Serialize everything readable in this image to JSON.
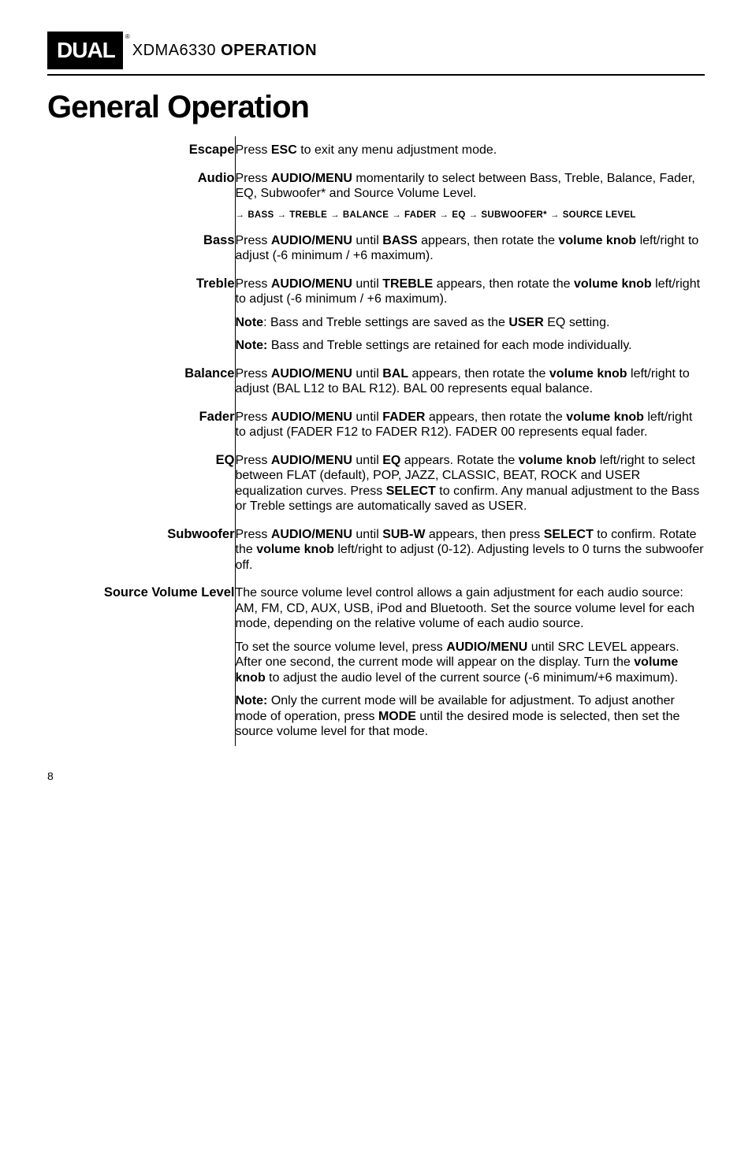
{
  "header": {
    "logo_text": "DUAL",
    "logo_reg": "®",
    "model": "XDMA6330",
    "operation_word": "OPERATION"
  },
  "main_heading": "General Operation",
  "rows": [
    {
      "label": "Escape",
      "paragraphs": [
        "Press <b>ESC</b> to exit any menu adjustment mode."
      ]
    },
    {
      "label": "Audio",
      "paragraphs": [
        "Press <b>AUDIO/MENU</b> momentarily to select between Bass, Treble, Balance, Fader, EQ, Subwoofer* and Source Volume Level."
      ],
      "flow": [
        "BASS",
        "TREBLE",
        "BALANCE",
        "FADER",
        "EQ",
        "SUBWOOFER*",
        "SOURCE LEVEL"
      ]
    },
    {
      "label": "Bass",
      "paragraphs": [
        "Press <b>AUDIO/MENU</b> until <b>BASS</b> appears, then rotate the <b>volume knob</b> left/right to adjust (-6 minimum / +6 maximum)."
      ]
    },
    {
      "label": "Treble",
      "paragraphs": [
        "Press <b>AUDIO/MENU</b> until <b>TREBLE</b> appears, then rotate the <b>volume knob</b> left/right to adjust (-6 minimum / +6 maximum).",
        "<b>Note</b>: Bass and Treble settings are saved as the <b>USER</b> EQ setting.",
        "<b>Note:</b> Bass and Treble settings are retained for each mode individually."
      ]
    },
    {
      "label": "Balance",
      "paragraphs": [
        "Press <b>AUDIO/MENU</b> until <b>BAL</b> appears, then rotate the <b>volume knob</b> left/right to adjust (BAL L12 to BAL R12). BAL 00 represents equal balance."
      ]
    },
    {
      "label": "Fader",
      "paragraphs": [
        "Press <b>AUDIO/MENU</b> until <b>FADER</b> appears, then rotate the <b>volume knob</b> left/right to adjust (FADER F12 to FADER R12). FADER 00 represents equal fader."
      ]
    },
    {
      "label": "EQ",
      "paragraphs": [
        "Press <b>AUDIO/MENU</b> until <b>EQ</b> appears. Rotate the <b>volume knob</b> left/right to select between FLAT (default), POP, JAZZ, CLASSIC, BEAT, ROCK and USER equalization curves. Press <b>SELECT</b> to confirm. Any manual adjustment to the Bass or Treble settings are automatically saved as USER."
      ]
    },
    {
      "label": "Subwoofer",
      "paragraphs": [
        "Press <b>AUDIO/MENU</b> until <b>SUB-W</b> appears, then press <b>SELECT</b> to confirm. Rotate the <b>volume knob</b> left/right to adjust (0-12).  Adjusting levels to 0 turns the subwoofer off."
      ]
    },
    {
      "label": "Source Volume Level",
      "paragraphs": [
        "The source volume level control allows a gain adjustment for each audio source: AM, FM, CD, AUX, USB, iPod and Bluetooth. Set the source volume level for each mode, depending on the relative volume of each audio source.",
        "To set the source volume level, press <b>AUDIO/MENU</b> until SRC LEVEL appears. After one second, the current mode will appear on the display. Turn the <b>volume knob</b> to adjust the audio level of the current source (-6 minimum/+6 maximum).",
        "<b>Note:</b> Only the current mode will be available for adjustment. To adjust another mode of operation, press <b>MODE</b> until the desired mode is selected, then set the source volume level for that mode."
      ]
    }
  ],
  "page_number": "8"
}
